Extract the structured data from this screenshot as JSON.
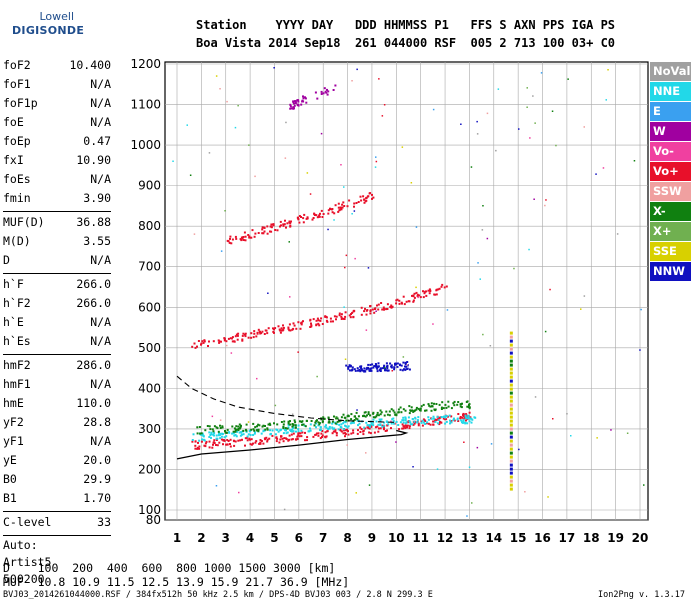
{
  "logo": {
    "top": "Lowell",
    "bottom": "DIGISONDE"
  },
  "header": {
    "line1": "Station    YYYY DAY   DDD HHMMSS P1   FFS S AXN PPS IGA PS",
    "line2": "Boa Vista 2014 Sep18  261 044000 RSF  005 2 713 100 03+ C0"
  },
  "params": {
    "group1": [
      [
        "foF2",
        "10.400"
      ],
      [
        "foF1",
        "N/A"
      ],
      [
        "foF1p",
        "N/A"
      ],
      [
        "foE",
        "N/A"
      ],
      [
        "foEp",
        "0.47"
      ],
      [
        "fxI",
        "10.90"
      ],
      [
        "foEs",
        "N/A"
      ],
      [
        "fmin",
        "3.90"
      ]
    ],
    "group2": [
      [
        "MUF(D)",
        "36.88"
      ],
      [
        "M(D)",
        "3.55"
      ],
      [
        "D",
        "N/A"
      ]
    ],
    "group3": [
      [
        "h`F",
        "266.0"
      ],
      [
        "h`F2",
        "266.0"
      ],
      [
        "h`E",
        "N/A"
      ],
      [
        "h`Es",
        "N/A"
      ]
    ],
    "group4": [
      [
        "hmF2",
        "286.0"
      ],
      [
        "hmF1",
        "N/A"
      ],
      [
        "hmE",
        "110.0"
      ],
      [
        "yF2",
        "28.8"
      ],
      [
        "yF1",
        "N/A"
      ],
      [
        "yE",
        "20.0"
      ],
      [
        "B0",
        "29.9"
      ],
      [
        "B1",
        "1.70"
      ]
    ],
    "group5": [
      [
        "C-level",
        "33"
      ]
    ],
    "autoscale": [
      "Auto:",
      "Artist5",
      "500200"
    ]
  },
  "legend": [
    {
      "label": "NoVal",
      "color": "#a0a0a0"
    },
    {
      "label": "NNE",
      "color": "#22d8e8"
    },
    {
      "label": "E",
      "color": "#3aa0f0"
    },
    {
      "label": "W",
      "color": "#a000a0"
    },
    {
      "label": "Vo-",
      "color": "#f040a0"
    },
    {
      "label": "Vo+",
      "color": "#e8102a"
    },
    {
      "label": "SSW",
      "color": "#f0a0a0"
    },
    {
      "label": "X-",
      "color": "#108010"
    },
    {
      "label": "X+",
      "color": "#70b050"
    },
    {
      "label": "SSE",
      "color": "#d8d000"
    },
    {
      "label": "NNW",
      "color": "#1010c0"
    }
  ],
  "footer": {
    "distance_row": "D    100  200  400  600  800 1000 1500 3000 [km]",
    "muf_row": "MUF  10.8 10.9 11.5 12.5 13.9 15.9 21.7 36.9 [MHz]",
    "file_info": "BVJ03_2014261044000.RSF / 384fx512h 50 kHz 2.5 km / DPS-4D BVJ03 003 / 2.8 N 299.3 E",
    "version": "Ion2Png v. 1.3.17"
  },
  "chart_data": {
    "type": "scatter",
    "title": "",
    "xlabel": "",
    "ylabel": "",
    "xlim": [
      1,
      20
    ],
    "ylim": [
      80,
      1200
    ],
    "xticks": [
      1,
      2,
      3,
      4,
      5,
      6,
      7,
      8,
      9,
      10,
      11,
      12,
      13,
      14,
      15,
      16,
      17,
      18,
      19,
      20
    ],
    "yticks": [
      80,
      100,
      200,
      300,
      400,
      500,
      600,
      700,
      800,
      900,
      1000,
      1100,
      1200
    ],
    "grid": true,
    "traces": [
      {
        "name": "Vo+",
        "color": "#e8102a",
        "x": [
          1.6,
          2.5,
          3.5,
          4.5,
          5.5,
          6.5,
          7.5,
          8.5,
          9.5,
          10.5,
          11.5,
          12.5,
          13.0
        ],
        "y": [
          262,
          266,
          270,
          274,
          280,
          286,
          292,
          298,
          306,
          314,
          322,
          330,
          334
        ]
      },
      {
        "name": "NNE",
        "color": "#22d8e8",
        "x": [
          1.6,
          2.5,
          3.5,
          4.5,
          5.5,
          6.5,
          7.5,
          8.5,
          9.5,
          10.5,
          11.5,
          12.5,
          13.2
        ],
        "y": [
          282,
          285,
          290,
          296,
          302,
          306,
          310,
          314,
          318,
          322,
          325,
          326,
          325
        ]
      },
      {
        "name": "X-",
        "color": "#108010",
        "x": [
          1.8,
          3,
          4,
          5,
          6,
          7,
          8,
          9,
          10,
          11,
          12,
          13
        ],
        "y": [
          300,
          302,
          305,
          310,
          316,
          322,
          330,
          338,
          346,
          354,
          360,
          362
        ]
      },
      {
        "name": "Vo+",
        "color": "#e8102a",
        "x": [
          1.6,
          3,
          4,
          5,
          6,
          7,
          8,
          9,
          10,
          11,
          12
        ],
        "y": [
          510,
          522,
          534,
          546,
          558,
          570,
          584,
          598,
          614,
          632,
          650
        ]
      },
      {
        "name": "NNW",
        "color": "#1010c0",
        "x": [
          7.8,
          8.5,
          9,
          9.5,
          10,
          10.5
        ],
        "y": [
          450,
          452,
          454,
          455,
          456,
          458
        ]
      },
      {
        "name": "Vo+",
        "color": "#e8102a",
        "x": [
          3,
          4,
          5,
          6,
          7,
          8,
          9
        ],
        "y": [
          765,
          782,
          800,
          818,
          836,
          856,
          878
        ]
      },
      {
        "name": "W",
        "color": "#a000a0",
        "x": [
          5.6,
          6,
          7.6
        ],
        "y": [
          1098,
          1110,
          1145
        ]
      }
    ],
    "profile": [
      {
        "x": 1,
        "y": 226
      },
      {
        "x": 2,
        "y": 238
      },
      {
        "x": 4,
        "y": 248
      },
      {
        "x": 6,
        "y": 260
      },
      {
        "x": 8,
        "y": 274
      },
      {
        "x": 10.2,
        "y": 286
      },
      {
        "x": 10.4,
        "y": 290
      },
      {
        "x": 10,
        "y": 296
      }
    ],
    "dashed_curve": [
      {
        "x": 1,
        "y": 430
      },
      {
        "x": 1.6,
        "y": 400
      },
      {
        "x": 2.5,
        "y": 374
      },
      {
        "x": 3.5,
        "y": 354
      },
      {
        "x": 5,
        "y": 338
      },
      {
        "x": 6.5,
        "y": 327
      },
      {
        "x": 8,
        "y": 320
      },
      {
        "x": 10,
        "y": 316
      }
    ],
    "vertical_strip": {
      "x": 14.7,
      "y_range": [
        150,
        540
      ]
    }
  }
}
